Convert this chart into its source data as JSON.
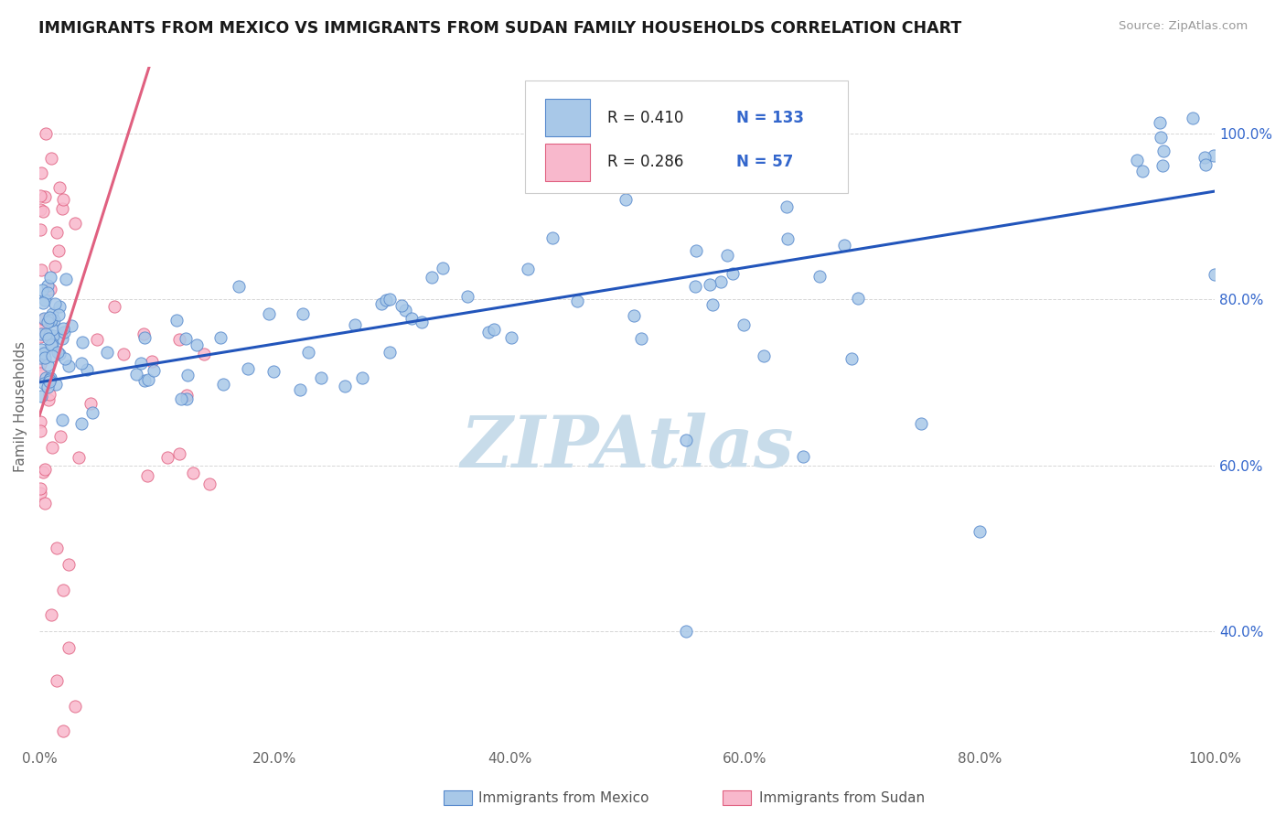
{
  "title": "IMMIGRANTS FROM MEXICO VS IMMIGRANTS FROM SUDAN FAMILY HOUSEHOLDS CORRELATION CHART",
  "source": "Source: ZipAtlas.com",
  "ylabel": "Family Households",
  "xlim": [
    0,
    100
  ],
  "ylim": [
    26,
    108
  ],
  "x_ticks": [
    0,
    20,
    40,
    60,
    80,
    100
  ],
  "y_ticks": [
    40,
    60,
    80,
    100
  ],
  "mexico_color": "#a8c8e8",
  "mexico_edge": "#5588cc",
  "sudan_color": "#f8b8cc",
  "sudan_edge": "#e06080",
  "mexico_line_color": "#2255bb",
  "sudan_line_color": "#e06080",
  "right_tick_color": "#3366cc",
  "mexico_R": 0.41,
  "mexico_N": 133,
  "sudan_R": 0.286,
  "sudan_N": 57,
  "watermark": "ZIPAtlas",
  "watermark_color": "#c8dcea",
  "background_color": "#ffffff",
  "grid_color": "#bbbbbb",
  "title_color": "#1a1a1a",
  "ylabel_color": "#666666",
  "bottom_legend_mexico": "Immigrants from Mexico",
  "bottom_legend_sudan": "Immigrants from Sudan"
}
